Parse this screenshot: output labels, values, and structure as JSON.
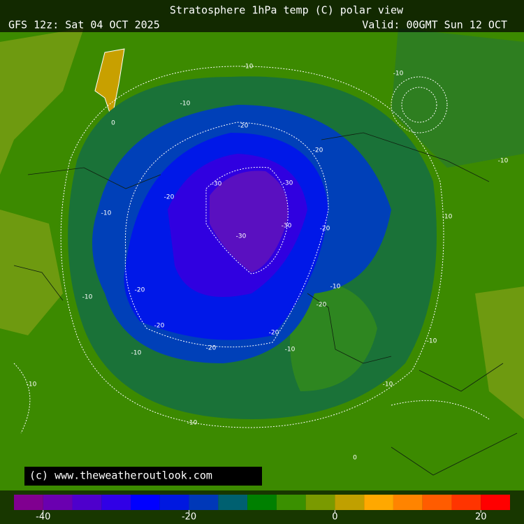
{
  "header": {
    "title": "Stratosphere 1hPa temp (C) polar view",
    "run": "GFS 12z: Sat 04 OCT 2025",
    "valid": "Valid: 00GMT Sun 12 OCT"
  },
  "copyright": "(c) www.theweatheroutlook.com",
  "contour_labels": [
    "-30",
    "-20",
    "-10",
    "0"
  ],
  "colorbar": {
    "lim": [
      -44,
      24
    ],
    "ticks": [
      -40,
      -20,
      0,
      20
    ],
    "colors": [
      "#800090",
      "#6a00b0",
      "#4e00cc",
      "#3000e6",
      "#0000ff",
      "#0018e0",
      "#0038b8",
      "#006070",
      "#008000",
      "#3a9000",
      "#7a9a00",
      "#c0a000",
      "#ffa800",
      "#ff8400",
      "#ff5c00",
      "#ff3400",
      "#ff0000"
    ]
  }
}
